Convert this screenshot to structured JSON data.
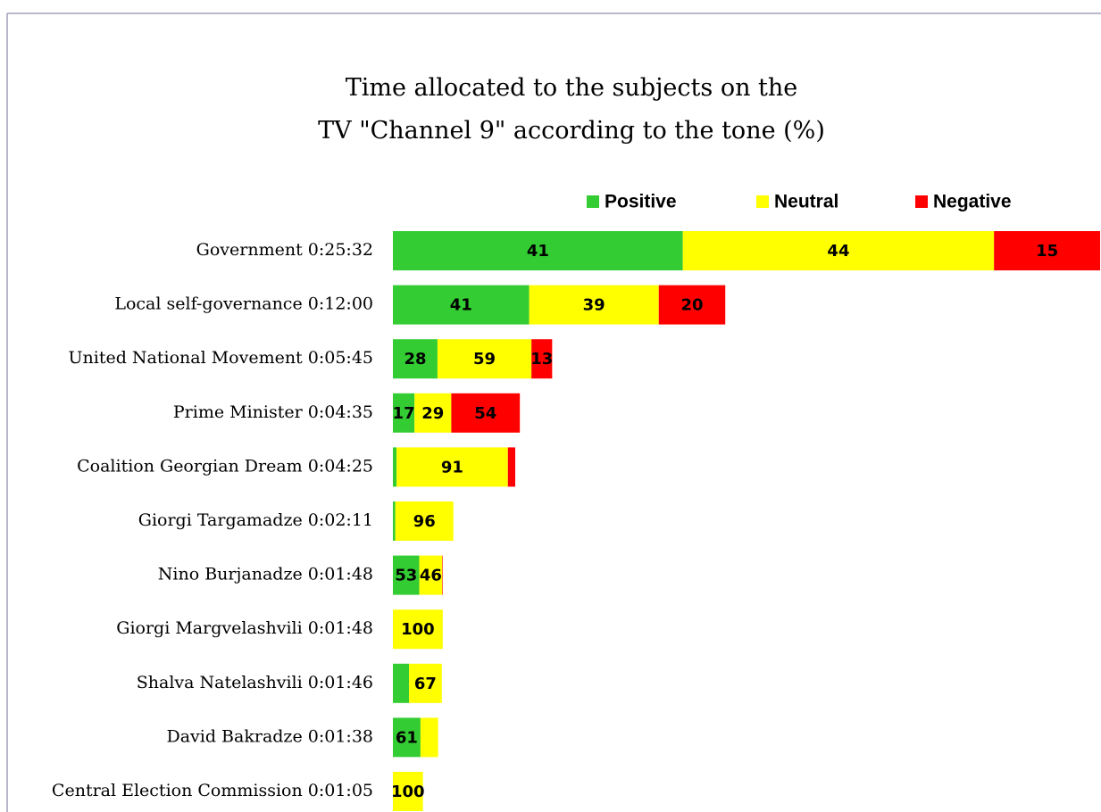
{
  "chart_data": {
    "type": "bar",
    "orientation": "horizontal",
    "stacked": true,
    "title": [
      "Time allocated to the subjects on the",
      "TV \"Channel 9\" according to the tone (%)"
    ],
    "categories": [
      "Government",
      "Local self-governance",
      "United National Movement",
      "Prime Minister",
      "Coalition Georgian Dream",
      "Giorgi Targamadze",
      "Nino Burjanadze",
      "Giorgi Margvelashvili",
      "Shalva Natelashvili",
      "David Bakradze",
      "Central Election Commission"
    ],
    "durations": [
      "0:25:32",
      "0:12:00",
      "0:05:45",
      "0:04:35",
      "0:04:25",
      "0:02:11",
      "0:01:48",
      "0:01:48",
      "0:01:46",
      "0:01:38",
      "0:01:05"
    ],
    "legend": "top",
    "series": [
      {
        "name": "Positive",
        "color": "#33cc33",
        "values": [
          41,
          41,
          28,
          17,
          3,
          4,
          53,
          0,
          33,
          61,
          0
        ],
        "value_labels": [
          41,
          41,
          28,
          17,
          null,
          null,
          53,
          null,
          null,
          61,
          null
        ]
      },
      {
        "name": "Neutral",
        "color": "#ffff00",
        "values": [
          44,
          39,
          59,
          29,
          91,
          96,
          46,
          100,
          67,
          39,
          100
        ],
        "value_labels": [
          44,
          39,
          59,
          29,
          91,
          96,
          46,
          100,
          67,
          null,
          100
        ]
      },
      {
        "name": "Negative",
        "color": "#ff0000",
        "values": [
          15,
          20,
          13,
          54,
          6,
          0,
          1,
          0,
          0,
          0,
          0
        ],
        "value_labels": [
          15,
          20,
          13,
          54,
          null,
          null,
          null,
          null,
          null,
          null,
          null
        ]
      }
    ]
  }
}
